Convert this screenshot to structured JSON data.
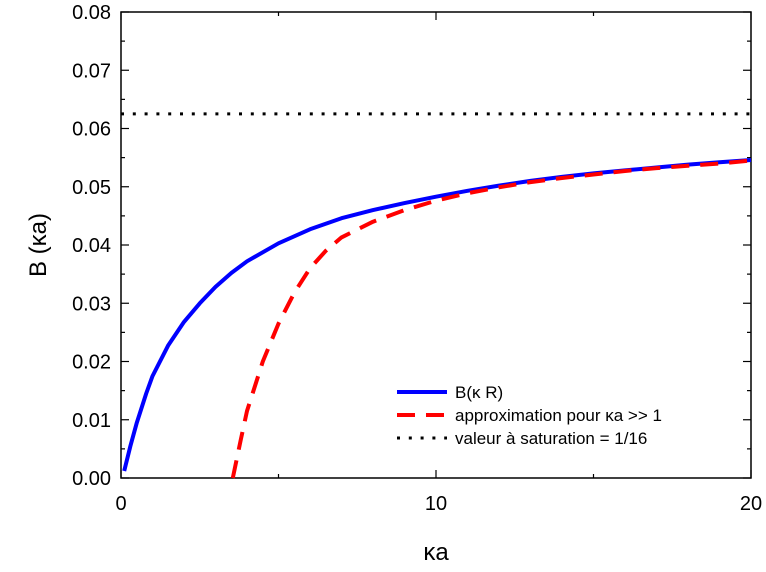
{
  "chart_data": {
    "type": "line",
    "title": "",
    "xlabel": "κa",
    "ylabel": "B (κa)",
    "xlim": [
      0,
      20
    ],
    "ylim": [
      0,
      0.08
    ],
    "xticks": [
      0,
      10,
      20
    ],
    "xtick_labels": [
      "0",
      "10",
      "20"
    ],
    "yticks": [
      0,
      0.01,
      0.02,
      0.03,
      0.04,
      0.05,
      0.06,
      0.07,
      0.08
    ],
    "ytick_labels": [
      "0.00",
      "0.01",
      "0.02",
      "0.03",
      "0.04",
      "0.05",
      "0.06",
      "0.07",
      "0.08"
    ],
    "grid": false,
    "legend_position": "bottom-right",
    "series": [
      {
        "name": "B(κ R)",
        "color": "#0000ff",
        "style": "solid",
        "x": [
          0.1,
          0.3,
          0.5,
          0.8,
          1.0,
          1.5,
          2.0,
          2.5,
          3.0,
          3.5,
          4.0,
          5.0,
          6.0,
          7.0,
          8.0,
          9.0,
          10.0,
          11.0,
          12.0,
          13.0,
          14.0,
          15.0,
          16.0,
          17.0,
          18.0,
          19.0,
          20.0
        ],
        "y": [
          0.0012,
          0.0055,
          0.0095,
          0.0145,
          0.0175,
          0.0228,
          0.0268,
          0.03,
          0.0328,
          0.0352,
          0.0372,
          0.0403,
          0.0427,
          0.0446,
          0.046,
          0.0472,
          0.0483,
          0.0493,
          0.0502,
          0.051,
          0.0517,
          0.0523,
          0.0528,
          0.0533,
          0.0538,
          0.0542,
          0.0546
        ]
      },
      {
        "name": "approximation pour κa >> 1",
        "color": "#ff0000",
        "style": "dashed",
        "x": [
          3.55,
          3.8,
          4.0,
          4.5,
          5.0,
          5.5,
          6.0,
          6.5,
          7.0,
          8.0,
          9.0,
          10.0,
          11.0,
          12.0,
          13.0,
          14.0,
          15.0,
          16.0,
          17.0,
          18.0,
          19.0,
          20.0
        ],
        "y": [
          0.0,
          0.0065,
          0.0115,
          0.02,
          0.0265,
          0.0318,
          0.036,
          0.039,
          0.0413,
          0.044,
          0.046,
          0.0476,
          0.0489,
          0.0499,
          0.0508,
          0.0515,
          0.0521,
          0.0527,
          0.0532,
          0.0536,
          0.054,
          0.0545
        ]
      },
      {
        "name": "valeur à saturation = 1/16",
        "color": "#000000",
        "style": "dotted",
        "x": [
          0,
          20
        ],
        "y": [
          0.0625,
          0.0625
        ]
      }
    ]
  }
}
